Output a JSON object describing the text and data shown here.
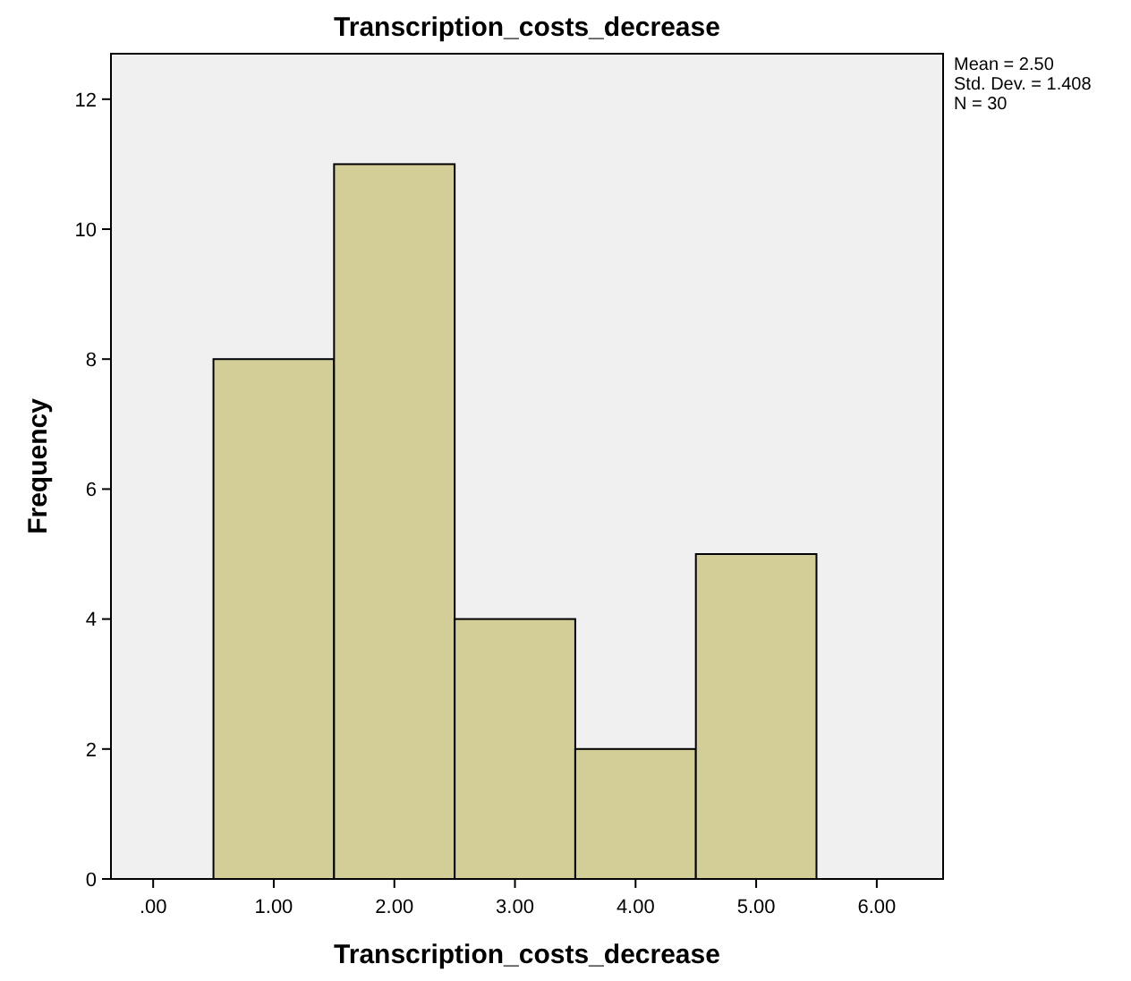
{
  "chart_data": {
    "type": "histogram",
    "title": "Transcription_costs_decrease",
    "xlabel": "Transcription_costs_decrease",
    "ylabel": "Frequency",
    "bins": [
      0.5,
      1.5,
      2.5,
      3.5,
      4.5,
      5.5
    ],
    "values": [
      8,
      11,
      4,
      2,
      5
    ],
    "color": "#d3ce97",
    "xlim": [
      -0.35,
      6.55
    ],
    "xticks": [
      {
        "value": 0,
        "label": ".00"
      },
      {
        "value": 1,
        "label": "1.00"
      },
      {
        "value": 2,
        "label": "2.00"
      },
      {
        "value": 3,
        "label": "3.00"
      },
      {
        "value": 4,
        "label": "4.00"
      },
      {
        "value": 5,
        "label": "5.00"
      },
      {
        "value": 6,
        "label": "6.00"
      }
    ],
    "ylim": [
      0,
      12.7
    ],
    "yticks": [
      0,
      2,
      4,
      6,
      8,
      10,
      12
    ],
    "annotations": [
      "Mean = 2.50",
      "Std. Dev. = 1.408",
      "N = 30"
    ],
    "grid": false
  }
}
